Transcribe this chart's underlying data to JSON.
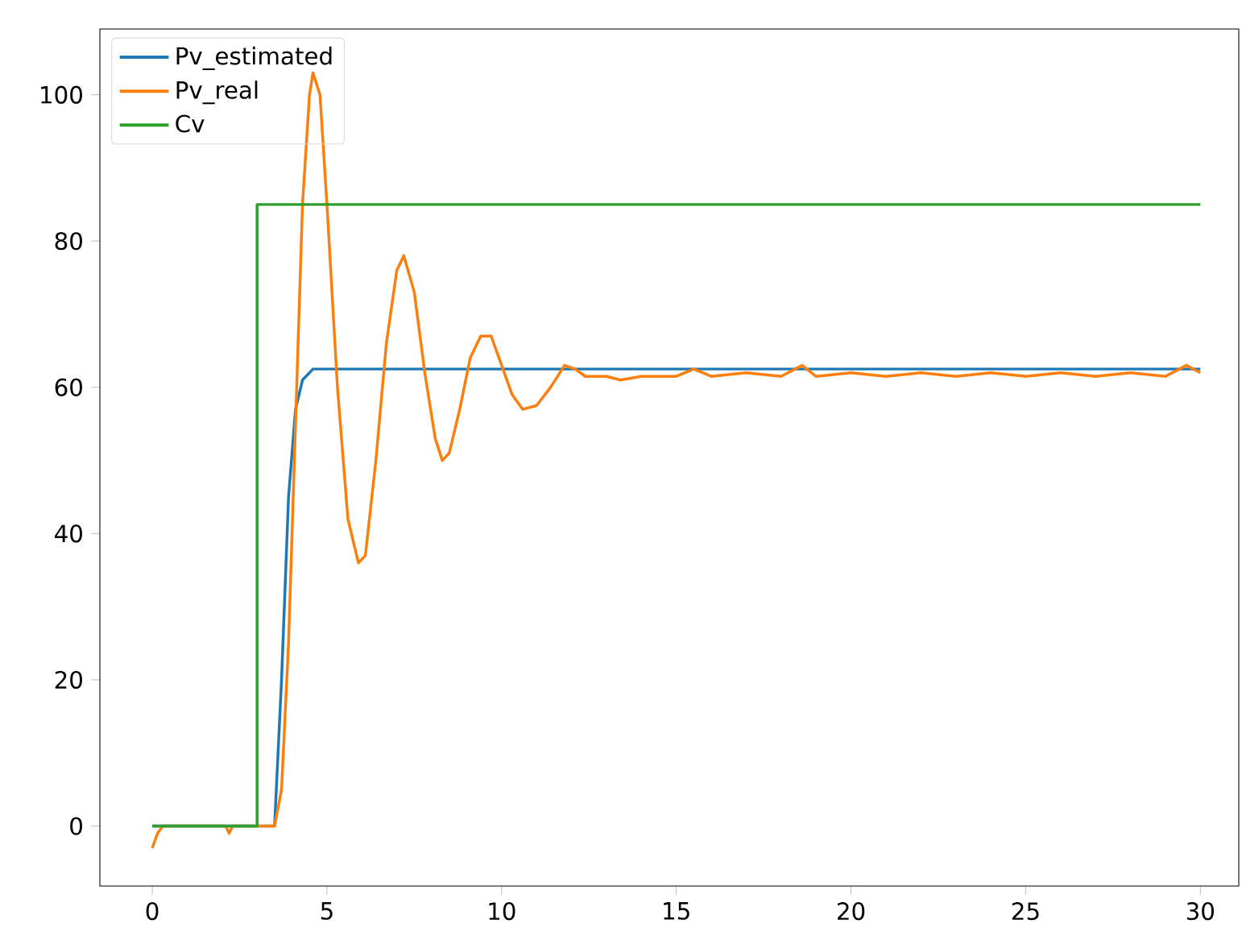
{
  "chart_data": {
    "type": "line",
    "legend": "top left",
    "grid": false,
    "xlim": [
      -1.5,
      31.1
    ],
    "ylim": [
      -8.2,
      109
    ],
    "xticks": [
      0,
      5,
      10,
      15,
      20,
      25,
      30
    ],
    "yticks": [
      0,
      20,
      40,
      60,
      80,
      100
    ],
    "series": [
      {
        "name": "Pv_estimated",
        "color": "#1f77b4",
        "x": [
          0,
          3.5,
          3.7,
          3.9,
          4.1,
          4.3,
          4.6,
          30
        ],
        "values": [
          0,
          0,
          20,
          45,
          57,
          61,
          62.5,
          62.5
        ]
      },
      {
        "name": "Pv_real",
        "color": "#ff7f0e",
        "x": [
          0,
          0.15,
          0.3,
          2.1,
          2.2,
          2.3,
          3.5,
          3.7,
          3.9,
          4.1,
          4.3,
          4.5,
          4.6,
          4.8,
          5.0,
          5.3,
          5.6,
          5.9,
          6.1,
          6.4,
          6.7,
          7.0,
          7.2,
          7.5,
          7.8,
          8.1,
          8.3,
          8.5,
          8.8,
          9.1,
          9.4,
          9.7,
          10.0,
          10.3,
          10.6,
          11.0,
          11.4,
          11.8,
          12.1,
          12.4,
          13,
          13.4,
          14,
          15,
          15.5,
          16,
          17,
          18,
          18.6,
          19,
          20,
          21,
          22,
          23,
          24,
          25,
          26,
          27,
          28,
          29,
          29.6,
          30
        ],
        "values": [
          -3,
          -1,
          0,
          0,
          -1,
          0,
          0,
          5,
          25,
          55,
          85,
          100,
          103,
          100,
          85,
          60,
          42,
          36,
          37,
          50,
          66,
          76,
          78,
          73,
          62,
          53,
          50,
          51,
          57,
          64,
          67,
          67,
          63,
          59,
          57,
          57.5,
          60,
          63,
          62.5,
          61.5,
          61.5,
          61,
          61.5,
          61.5,
          62.5,
          61.5,
          62,
          61.5,
          63,
          61.5,
          62,
          61.5,
          62,
          61.5,
          62,
          61.5,
          62,
          61.5,
          62,
          61.5,
          63,
          62
        ]
      },
      {
        "name": "Cv",
        "color": "#2ca02c",
        "x": [
          0,
          3,
          3,
          30
        ],
        "values": [
          0,
          0,
          85,
          85
        ]
      }
    ]
  }
}
